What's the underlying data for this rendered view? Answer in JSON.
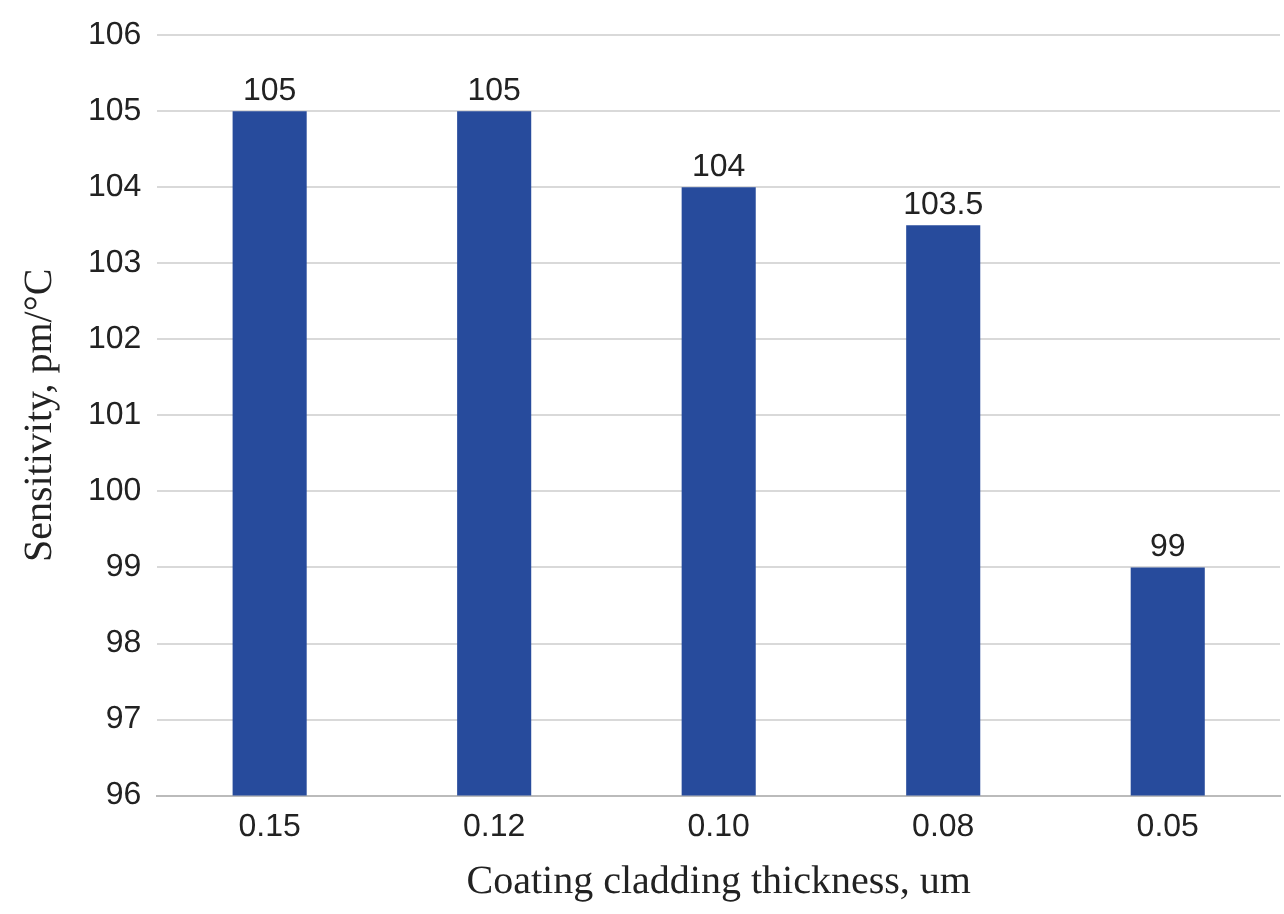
{
  "chart_data": {
    "type": "bar",
    "xlabel": "Coating cladding thickness, um",
    "ylabel": "Sensitivity, pm/°C",
    "categories": [
      "0.15",
      "0.12",
      "0.10",
      "0.08",
      "0.05"
    ],
    "values": [
      105,
      105,
      104,
      103.5,
      99
    ],
    "color": "#274b9c",
    "ylim": [
      96,
      106
    ],
    "yticks": [
      96,
      97,
      98,
      99,
      100,
      101,
      102,
      103,
      104,
      105,
      106
    ],
    "grid": "y",
    "data_labels": true
  }
}
